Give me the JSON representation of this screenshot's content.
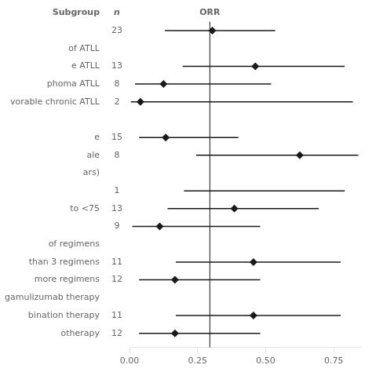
{
  "chart_data": {
    "type": "forest",
    "title": "ORR",
    "column_headers": [
      "Subgroup",
      "n"
    ],
    "categories": [
      null,
      "of ATLL",
      "e ATLL",
      "phoma ATLL",
      "vorable chronic ATLL",
      null,
      "e",
      "ale",
      "ars)",
      null,
      "to <75",
      null,
      "of regimens",
      "than 3 regimens",
      "more regimens",
      "gamulizumab therapy",
      "bination therapy",
      "otherapy"
    ],
    "n": [
      23,
      null,
      13,
      8,
      2,
      null,
      15,
      8,
      null,
      1,
      13,
      9,
      null,
      11,
      12,
      null,
      11,
      12
    ],
    "values": [
      0.304,
      null,
      0.462,
      0.125,
      0.04,
      null,
      0.133,
      0.625,
      null,
      null,
      0.385,
      0.111,
      null,
      0.455,
      0.167,
      null,
      0.455,
      0.167
    ],
    "ci_low": [
      0.13,
      null,
      0.195,
      0.02,
      0.005,
      null,
      0.035,
      0.245,
      null,
      0.2,
      0.14,
      0.01,
      null,
      0.17,
      0.035,
      null,
      0.17,
      0.035
    ],
    "ci_high": [
      0.535,
      null,
      0.79,
      0.52,
      0.82,
      null,
      0.4,
      0.84,
      null,
      0.79,
      0.695,
      0.48,
      null,
      0.775,
      0.48,
      null,
      0.775,
      0.48
    ],
    "reference_line": 0.295,
    "xlim": [
      0.0,
      0.85
    ],
    "xticks": [
      {
        "value": 0.0,
        "label": "0.00"
      },
      {
        "value": 0.25,
        "label": "0.25"
      },
      {
        "value": 0.5,
        "label": "0.50"
      },
      {
        "value": 0.75,
        "label": "0.75"
      }
    ],
    "color": "#1a1a1a",
    "grid": false
  }
}
